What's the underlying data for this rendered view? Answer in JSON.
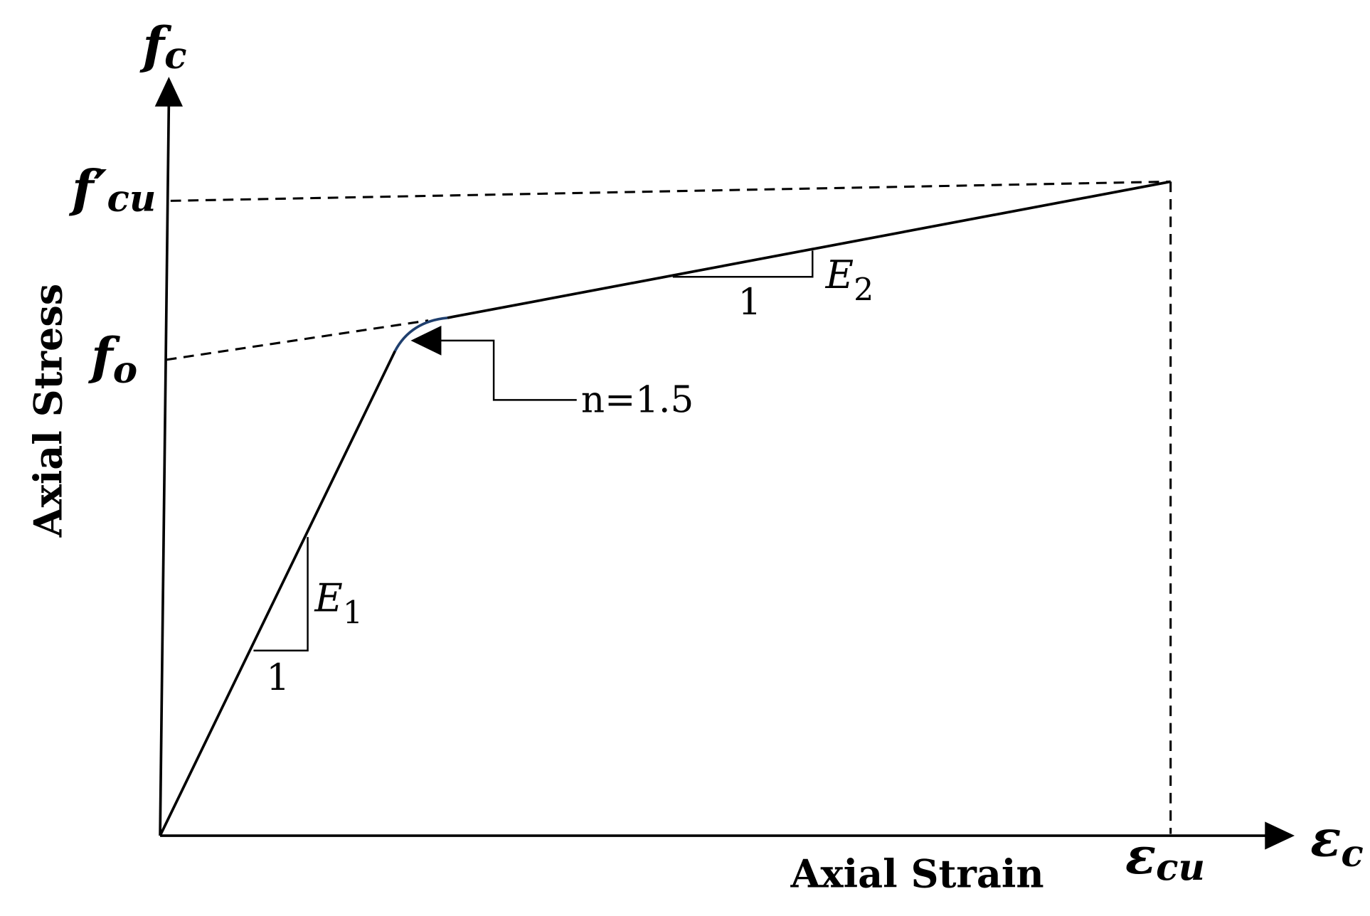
{
  "y_axis": {
    "symbol": "f",
    "subscript": "c",
    "title": "Axial Stress"
  },
  "x_axis": {
    "symbol": "ε",
    "subscript": "c",
    "title": "Axial Strain"
  },
  "stress_levels": [
    {
      "symbol": "f′",
      "subscript": "cu"
    },
    {
      "symbol": "f",
      "subscript": "o"
    }
  ],
  "strain_levels": [
    {
      "symbol": "ε",
      "subscript": "cu"
    }
  ],
  "slopes": [
    {
      "symbol": "E",
      "subscript": "1",
      "run": "1"
    },
    {
      "symbol": "E",
      "subscript": "2",
      "run": "1"
    }
  ],
  "annotation": "n=1.5"
}
